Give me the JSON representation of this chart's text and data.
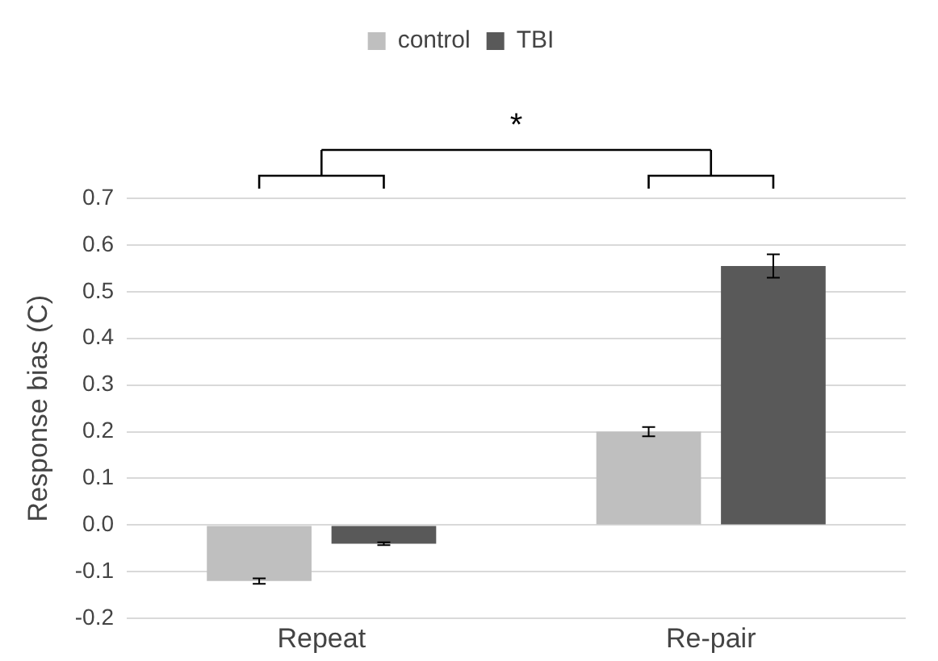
{
  "chart_data": {
    "type": "bar",
    "ylabel": "Response bias (C)",
    "categories": [
      "Repeat",
      "Re-pair"
    ],
    "series": [
      {
        "name": "control",
        "color": "#bfbfbf",
        "values": [
          -0.12,
          0.2
        ],
        "errors": [
          0.006,
          0.01
        ]
      },
      {
        "name": "TBI",
        "color": "#595959",
        "values": [
          -0.04,
          0.555
        ],
        "errors": [
          0.003,
          0.025
        ]
      }
    ],
    "ylim": [
      -0.2,
      0.7
    ],
    "yticks": [
      {
        "value": -0.2,
        "label": "-0.2"
      },
      {
        "value": -0.1,
        "label": "-0.1"
      },
      {
        "value": 0,
        "label": "0.0"
      },
      {
        "value": 0.1,
        "label": "0.1"
      },
      {
        "value": 0.2,
        "label": "0.2"
      },
      {
        "value": 0.3,
        "label": "0.3"
      },
      {
        "value": 0.4,
        "label": "0.4"
      },
      {
        "value": 0.5,
        "label": "0.5"
      },
      {
        "value": 0.6,
        "label": "0.6"
      },
      {
        "value": 0.7,
        "label": "0.7"
      }
    ],
    "grid": "y",
    "legend": "top",
    "annotations": [
      "*"
    ]
  }
}
